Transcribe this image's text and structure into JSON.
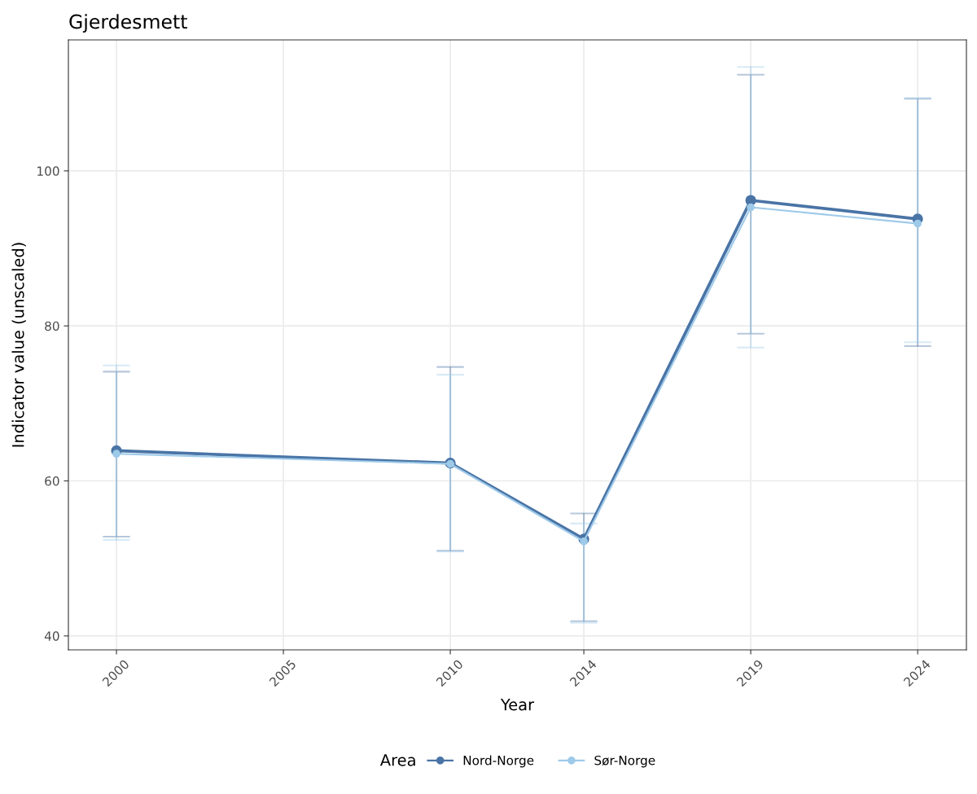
{
  "chart_data": {
    "type": "line",
    "title": "Gjerdesmett",
    "xlabel": "Year",
    "ylabel": "Indicator value (unscaled)",
    "legend_title": "Area",
    "x": [
      2000,
      2010,
      2014,
      2019,
      2024
    ],
    "series": [
      {
        "name": "Nord-Norge",
        "color": "#4a74a6",
        "values": [
          63.9,
          62.3,
          52.5,
          96.2,
          93.8
        ],
        "errors": [
          [
            52.8,
            74.1
          ],
          [
            51.0,
            74.7
          ],
          [
            41.9,
            55.8
          ],
          [
            79.0,
            112.4
          ],
          [
            77.4,
            109.3
          ]
        ]
      },
      {
        "name": "Sør-Norge",
        "color": "#9ecae9",
        "values": [
          63.5,
          62.2,
          52.2,
          95.3,
          93.2
        ],
        "errors": [
          [
            52.4,
            74.9
          ],
          [
            50.9,
            73.7
          ],
          [
            41.7,
            54.5
          ],
          [
            77.2,
            113.4
          ],
          [
            77.9,
            109.4
          ]
        ]
      }
    ],
    "xlim": [
      1998.56,
      2025.46
    ],
    "xticks": [
      2000,
      2005,
      2010,
      2014,
      2019,
      2024
    ],
    "ylim": [
      38.2,
      116.9
    ],
    "yticks": [
      40,
      60,
      80,
      100
    ],
    "grid": true,
    "legend": "bottom",
    "marker": "circle",
    "line_style": "solid"
  }
}
